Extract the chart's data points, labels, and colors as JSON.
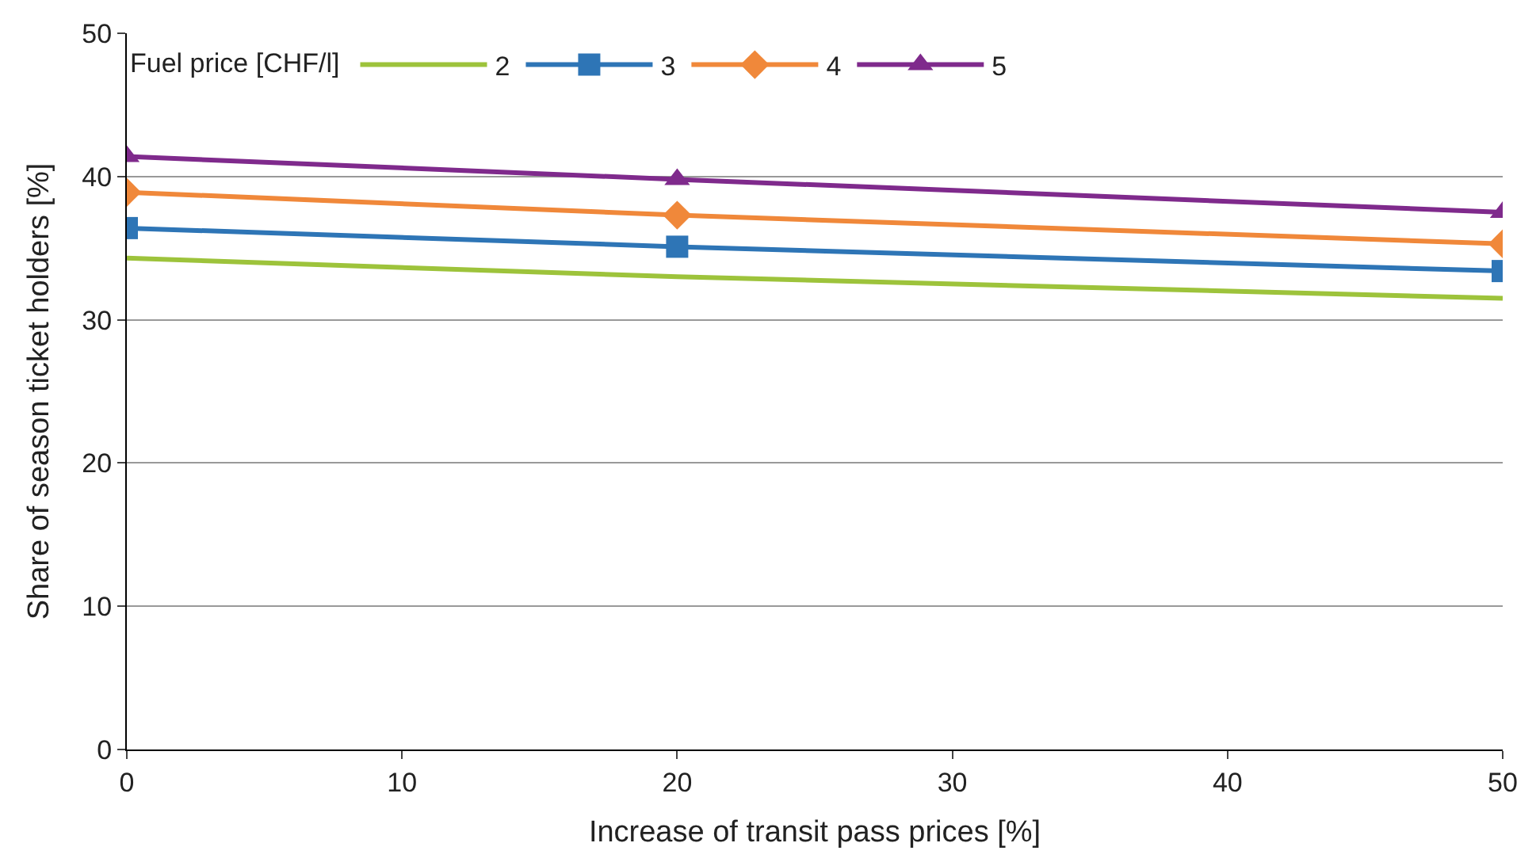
{
  "chart_data": {
    "type": "line",
    "xlabel": "Increase of transit pass prices [%]",
    "ylabel": "Share of season ticket holders [%]",
    "legend_title": "Fuel price [CHF/l]",
    "x": [
      0,
      20,
      50
    ],
    "xlim": [
      0,
      50
    ],
    "xticks": [
      0,
      10,
      20,
      30,
      40,
      50
    ],
    "ylim": [
      0,
      50
    ],
    "yticks": [
      0,
      10,
      20,
      30,
      40,
      50
    ],
    "grid": "y",
    "legend": "top",
    "series": [
      {
        "name": "2",
        "color": "#9dc33b",
        "marker": "none",
        "values": [
          34.3,
          33.0,
          31.5
        ]
      },
      {
        "name": "3",
        "color": "#2e75b6",
        "marker": "square",
        "values": [
          36.4,
          35.1,
          33.4
        ]
      },
      {
        "name": "4",
        "color": "#f0883a",
        "marker": "diamond",
        "values": [
          38.9,
          37.3,
          35.3
        ]
      },
      {
        "name": "5",
        "color": "#7f2a8c",
        "marker": "triangle",
        "values": [
          41.4,
          39.8,
          37.5
        ]
      }
    ]
  }
}
